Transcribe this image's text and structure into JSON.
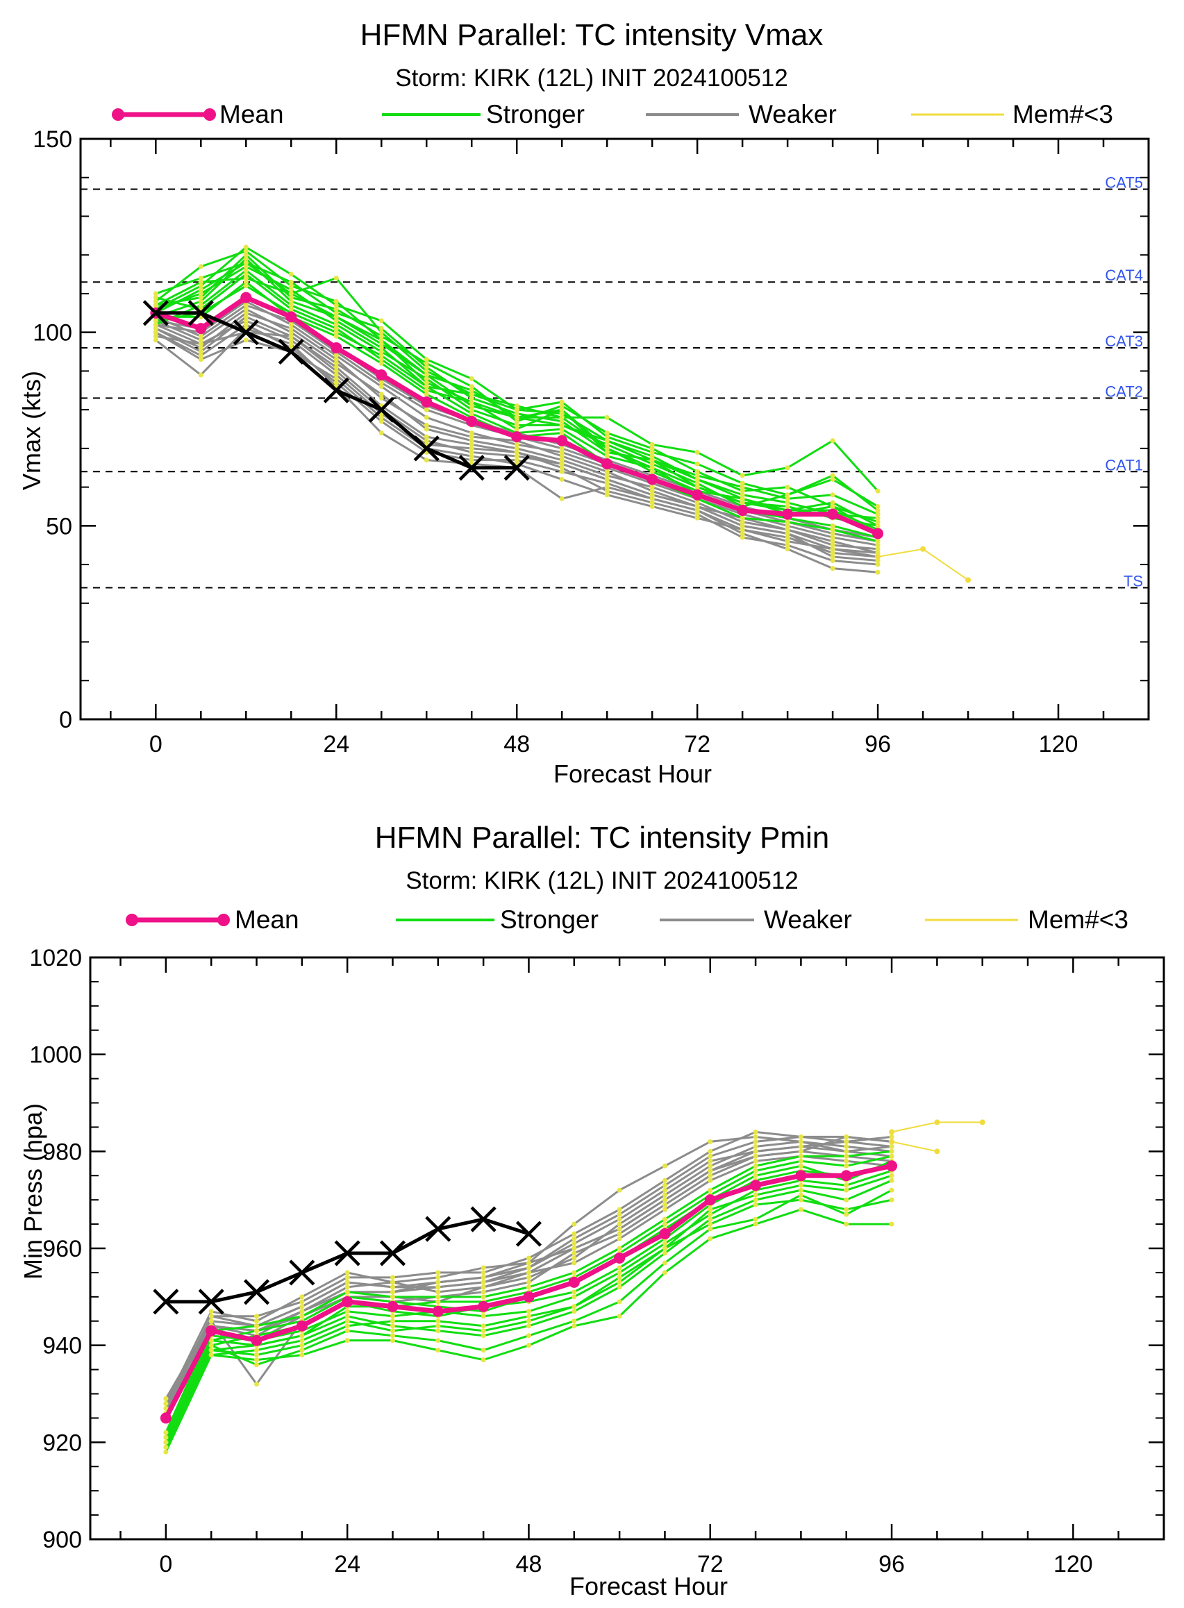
{
  "legend": {
    "mean": "Mean",
    "stronger": "Stronger",
    "weaker": "Weaker",
    "few_members": "Mem#<3"
  },
  "colors": {
    "mean": "#ee1187",
    "stronger": "#11dd11",
    "weaker": "#8c8c8c",
    "few_members": "#f0dc3c",
    "member_dots": "#e6e646",
    "observed": "#000000",
    "category_labels": "#3355ee"
  },
  "chart_data": [
    {
      "type": "line",
      "title": "HFMN Parallel: TC intensity Vmax",
      "subtitle": "Storm: KIRK (12L) INIT 2024100512",
      "xlabel": "Forecast Hour",
      "ylabel": "Vmax (kts)",
      "xlim": [
        -10,
        132
      ],
      "ylim": [
        0,
        150
      ],
      "xticks": [
        0,
        24,
        48,
        72,
        96,
        120
      ],
      "yticks": [
        0,
        50,
        100,
        150
      ],
      "grid": false,
      "legend_position": "top",
      "reference_lines": [
        {
          "label": "CAT5",
          "y": 137
        },
        {
          "label": "CAT4",
          "y": 113
        },
        {
          "label": "CAT3",
          "y": 96
        },
        {
          "label": "CAT2",
          "y": 83
        },
        {
          "label": "CAT1",
          "y": 64
        },
        {
          "label": "TS",
          "y": 34
        }
      ],
      "x": [
        0,
        6,
        12,
        18,
        24,
        30,
        36,
        42,
        48,
        54,
        60,
        66,
        72,
        78,
        84,
        90,
        96
      ],
      "series": [
        {
          "name": "Mean",
          "x": [
            0,
            6,
            12,
            18,
            24,
            30,
            36,
            42,
            48,
            54,
            60,
            66,
            72,
            78,
            84,
            90,
            96
          ],
          "y": [
            105,
            101,
            109,
            104,
            96,
            89,
            82,
            77,
            73,
            72,
            66,
            62,
            58,
            54,
            53,
            53,
            48
          ]
        },
        {
          "name": "Observed",
          "x": [
            0,
            6,
            12,
            18,
            24,
            30,
            36,
            42,
            48
          ],
          "y": [
            105,
            105,
            100,
            95,
            85,
            80,
            70,
            65,
            65
          ]
        },
        {
          "name": "Mem#<3",
          "x": [
            96,
            102,
            108
          ],
          "y": [
            42,
            44,
            36
          ]
        }
      ],
      "members_stronger": [
        [
          108,
          117,
          121,
          112,
          108,
          98,
          87,
          82,
          78,
          78,
          70,
          65,
          60,
          56,
          54,
          56,
          50
        ],
        [
          106,
          112,
          122,
          115,
          107,
          103,
          93,
          88,
          80,
          82,
          73,
          69,
          66,
          61,
          58,
          62,
          55
        ],
        [
          110,
          114,
          118,
          110,
          114,
          100,
          90,
          84,
          80,
          79,
          72,
          68,
          62,
          58,
          56,
          53,
          52
        ],
        [
          104,
          108,
          119,
          108,
          104,
          97,
          89,
          81,
          78,
          80,
          69,
          67,
          63,
          60,
          57,
          58,
          53
        ],
        [
          106,
          110,
          117,
          111,
          103,
          96,
          86,
          84,
          81,
          78,
          78,
          71,
          69,
          63,
          65,
          72,
          59
        ],
        [
          107,
          109,
          120,
          109,
          106,
          99,
          92,
          86,
          77,
          81,
          74,
          70,
          64,
          59,
          60,
          55,
          51
        ],
        [
          102,
          107,
          116,
          107,
          102,
          95,
          88,
          80,
          76,
          76,
          71,
          66,
          61,
          55,
          58,
          63,
          54
        ],
        [
          105,
          111,
          118,
          113,
          105,
          101,
          91,
          83,
          79,
          77,
          69,
          67,
          60,
          56,
          55,
          52,
          50
        ],
        [
          109,
          106,
          115,
          106,
          101,
          93,
          85,
          82,
          75,
          80,
          70,
          64,
          59,
          57,
          53,
          55,
          48
        ],
        [
          103,
          105,
          112,
          105,
          100,
          94,
          86,
          79,
          74,
          75,
          68,
          65,
          58,
          54,
          52,
          50,
          47
        ],
        [
          104,
          104,
          113,
          104,
          99,
          92,
          84,
          78,
          73,
          74,
          66,
          62,
          57,
          52,
          51,
          49,
          46
        ],
        [
          107,
          113,
          114,
          110,
          104,
          98,
          89,
          85,
          78,
          76,
          72,
          67,
          62,
          57,
          54,
          54,
          49
        ]
      ],
      "members_weaker": [
        [
          100,
          93,
          98,
          95,
          88,
          78,
          70,
          68,
          66,
          62,
          58,
          55,
          52,
          49,
          46,
          44,
          42
        ],
        [
          98,
          89,
          101,
          97,
          86,
          74,
          67,
          66,
          65,
          57,
          60,
          57,
          54,
          48,
          44,
          39,
          38
        ],
        [
          101,
          95,
          104,
          99,
          90,
          80,
          72,
          69,
          68,
          66,
          62,
          58,
          55,
          50,
          48,
          42,
          41
        ],
        [
          103,
          98,
          106,
          100,
          92,
          84,
          75,
          72,
          70,
          67,
          63,
          60,
          56,
          51,
          49,
          45,
          44
        ],
        [
          99,
          97,
          103,
          98,
          89,
          79,
          71,
          70,
          69,
          65,
          59,
          56,
          53,
          47,
          45,
          41,
          40
        ],
        [
          102,
          100,
          108,
          102,
          94,
          86,
          78,
          74,
          71,
          69,
          65,
          61,
          57,
          53,
          50,
          47,
          45
        ],
        [
          101,
          96,
          105,
          101,
          93,
          83,
          76,
          73,
          72,
          68,
          64,
          59,
          55,
          52,
          49,
          46,
          43
        ],
        [
          104,
          99,
          107,
          103,
          95,
          87,
          80,
          76,
          73,
          70,
          66,
          62,
          58,
          54,
          51,
          48,
          46
        ],
        [
          100,
          94,
          102,
          96,
          87,
          77,
          69,
          67,
          67,
          64,
          61,
          57,
          54,
          49,
          47,
          43,
          42
        ],
        [
          103,
          101,
          109,
          104,
          96,
          88,
          81,
          77,
          74,
          71,
          67,
          63,
          59,
          55,
          52,
          49,
          47
        ],
        [
          102,
          97,
          100,
          99,
          91,
          81,
          73,
          71,
          69,
          66,
          62,
          58,
          55,
          50,
          48,
          44,
          43
        ]
      ]
    },
    {
      "type": "line",
      "title": "HFMN Parallel: TC intensity Pmin",
      "subtitle": "Storm: KIRK (12L) INIT 2024100512",
      "xlabel": "Forecast Hour",
      "ylabel": "Min Press (hpa)",
      "xlim": [
        -10,
        132
      ],
      "ylim": [
        900,
        1020
      ],
      "xticks": [
        0,
        24,
        48,
        72,
        96,
        120
      ],
      "yticks": [
        900,
        920,
        940,
        960,
        980,
        1000,
        1020
      ],
      "grid": false,
      "legend_position": "top",
      "x": [
        0,
        6,
        12,
        18,
        24,
        30,
        36,
        42,
        48,
        54,
        60,
        66,
        72,
        78,
        84,
        90,
        96
      ],
      "series": [
        {
          "name": "Mean",
          "x": [
            0,
            6,
            12,
            18,
            24,
            30,
            36,
            42,
            48,
            54,
            60,
            66,
            72,
            78,
            84,
            90,
            96
          ],
          "y": [
            925,
            943,
            941,
            944,
            949,
            948,
            947,
            948,
            950,
            953,
            958,
            963,
            970,
            973,
            975,
            975,
            977
          ]
        },
        {
          "name": "Observed",
          "x": [
            0,
            6,
            12,
            18,
            24,
            30,
            36,
            42,
            48
          ],
          "y": [
            949,
            949,
            951,
            955,
            959,
            959,
            964,
            966,
            963
          ]
        },
        {
          "name": "Mem#<3",
          "x": [
            96,
            102,
            108
          ],
          "y": [
            984,
            986,
            986
          ]
        },
        {
          "name": "Mem#<3",
          "x": [
            96,
            102
          ],
          "y": [
            982,
            980
          ]
        }
      ],
      "members_stronger": [
        [
          918,
          938,
          937,
          938,
          941,
          941,
          939,
          937,
          940,
          944,
          946,
          955,
          962,
          965,
          968,
          965,
          965
        ],
        [
          920,
          940,
          936,
          939,
          943,
          942,
          941,
          939,
          942,
          945,
          949,
          957,
          964,
          966,
          971,
          967,
          972
        ],
        [
          921,
          941,
          940,
          942,
          946,
          944,
          943,
          942,
          944,
          947,
          952,
          959,
          966,
          970,
          972,
          970,
          974
        ],
        [
          919,
          939,
          938,
          940,
          944,
          945,
          945,
          944,
          946,
          948,
          953,
          960,
          968,
          971,
          973,
          972,
          975
        ],
        [
          922,
          942,
          941,
          943,
          947,
          946,
          947,
          946,
          947,
          950,
          955,
          961,
          967,
          972,
          974,
          973,
          976
        ],
        [
          920,
          940,
          942,
          944,
          949,
          947,
          946,
          948,
          949,
          951,
          956,
          962,
          969,
          974,
          976,
          975,
          977
        ],
        [
          921,
          941,
          943,
          945,
          950,
          949,
          948,
          947,
          950,
          953,
          958,
          964,
          970,
          975,
          977,
          974,
          978
        ],
        [
          919,
          938,
          939,
          941,
          945,
          943,
          944,
          943,
          945,
          948,
          954,
          960,
          965,
          969,
          970,
          968,
          970
        ],
        [
          920,
          939,
          940,
          942,
          948,
          948,
          949,
          949,
          951,
          954,
          959,
          965,
          971,
          976,
          978,
          977,
          979
        ],
        [
          922,
          943,
          944,
          946,
          951,
          950,
          950,
          950,
          952,
          955,
          960,
          966,
          972,
          977,
          979,
          979,
          980
        ]
      ],
      "members_weaker": [
        [
          929,
          944,
          943,
          946,
          951,
          951,
          952,
          953,
          955,
          960,
          964,
          970,
          976,
          980,
          981,
          980,
          981
        ],
        [
          928,
          945,
          944,
          948,
          953,
          952,
          953,
          954,
          956,
          962,
          967,
          973,
          979,
          982,
          983,
          982,
          983
        ],
        [
          927,
          946,
          946,
          949,
          954,
          954,
          955,
          955,
          958,
          963,
          968,
          974,
          980,
          984,
          983,
          983,
          982
        ],
        [
          926,
          944,
          942,
          947,
          952,
          953,
          951,
          952,
          954,
          958,
          965,
          971,
          977,
          981,
          982,
          981,
          980
        ],
        [
          928,
          947,
          945,
          950,
          955,
          953,
          954,
          956,
          957,
          965,
          972,
          977,
          982,
          983,
          982,
          980,
          979
        ],
        [
          929,
          945,
          932,
          945,
          950,
          949,
          950,
          951,
          953,
          959,
          963,
          969,
          975,
          979,
          980,
          979,
          978
        ],
        [
          927,
          943,
          941,
          946,
          950,
          950,
          949,
          952,
          955,
          957,
          962,
          968,
          974,
          978,
          979,
          978,
          977
        ],
        [
          926,
          946,
          944,
          948,
          953,
          952,
          952,
          953,
          956,
          961,
          966,
          972,
          978,
          980,
          981,
          982,
          981
        ],
        [
          928,
          944,
          943,
          947,
          951,
          951,
          953,
          954,
          957,
          960,
          964,
          970,
          976,
          979,
          980,
          983,
          982
        ]
      ]
    }
  ]
}
